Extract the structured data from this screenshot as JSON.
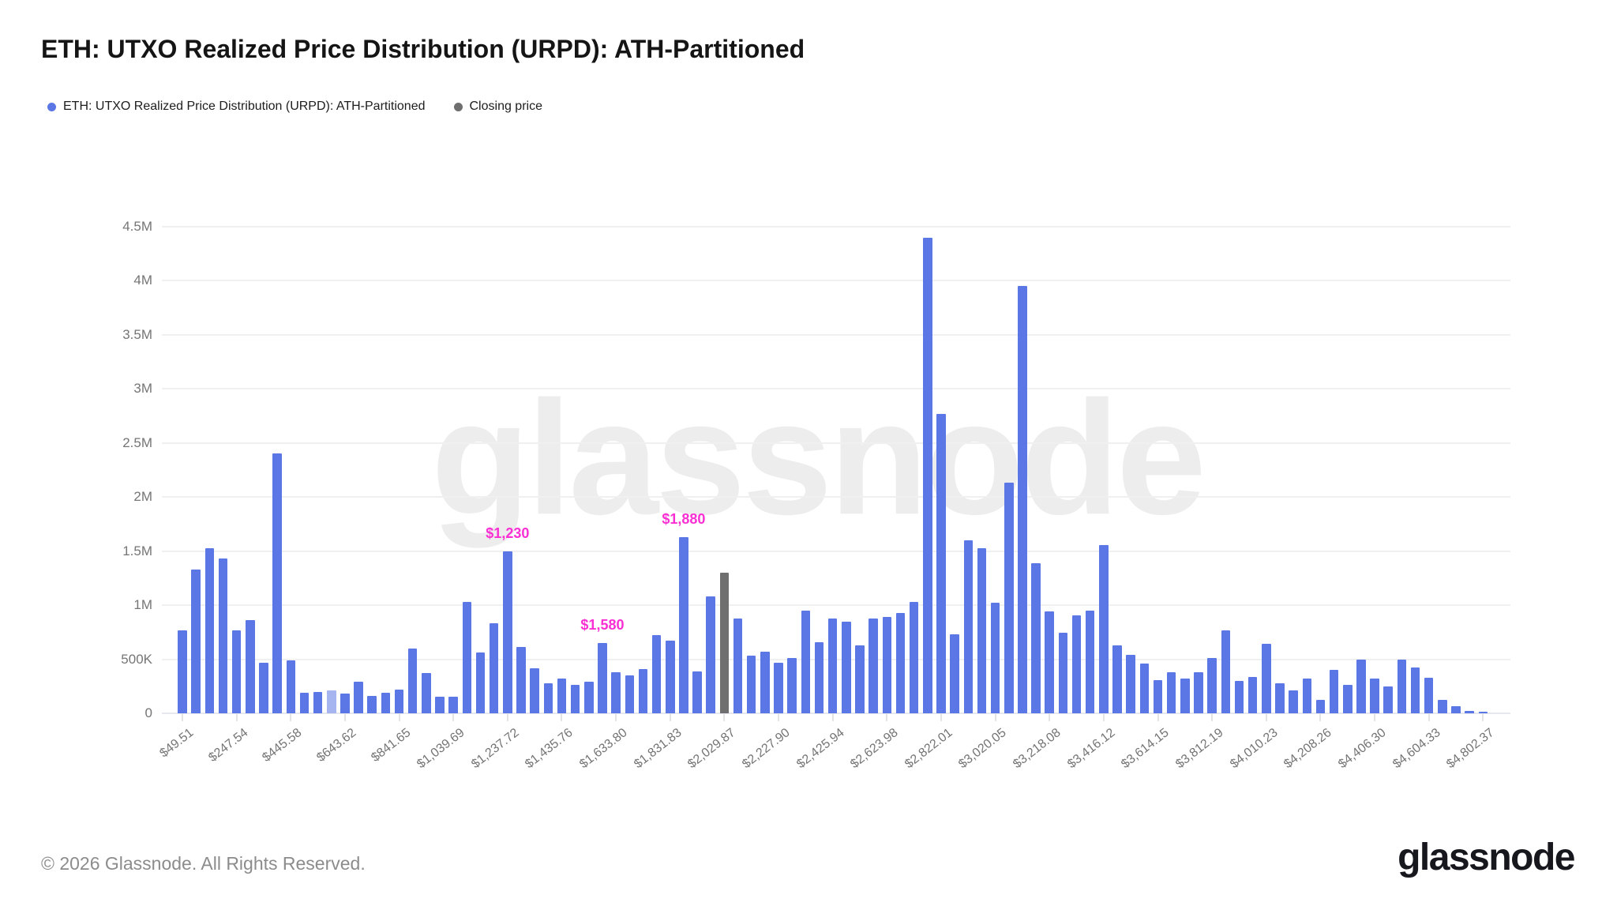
{
  "header": {
    "title": "ETH: UTXO Realized Price Distribution (URPD): ATH-Partitioned",
    "legend": [
      {
        "label": "ETH: UTXO Realized Price Distribution (URPD): ATH-Partitioned",
        "color": "#5b77e5"
      },
      {
        "label": "Closing price",
        "color": "#6f6f6f"
      }
    ]
  },
  "watermark": "glassnode",
  "footer": {
    "copyright": "© 2026 Glassnode. All Rights Reserved.",
    "logo_text": "glassnode"
  },
  "chart_data": {
    "type": "bar",
    "title": "ETH: UTXO Realized Price Distribution (URPD): ATH-Partitioned",
    "xlabel": "",
    "ylabel": "",
    "ylim": [
      0,
      4500000
    ],
    "y_unit": "coins (ETH supply)",
    "grid": "horizontal",
    "legend_position": "top-left",
    "y_ticks": [
      {
        "value": 0.0,
        "label": "0"
      },
      {
        "value": 0.5,
        "label": "500K"
      },
      {
        "value": 1.0,
        "label": "1M"
      },
      {
        "value": 1.5,
        "label": "1.5M"
      },
      {
        "value": 2.0,
        "label": "2M"
      },
      {
        "value": 2.5,
        "label": "2.5M"
      },
      {
        "value": 3.0,
        "label": "3M"
      },
      {
        "value": 3.5,
        "label": "3.5M"
      },
      {
        "value": 4.0,
        "label": "4M"
      },
      {
        "value": 4.5,
        "label": "4.5M"
      }
    ],
    "x_tick_labels": [
      "$49.51",
      "$247.54",
      "$445.58",
      "$643.62",
      "$841.65",
      "$1,039.69",
      "$1,237.72",
      "$1,435.76",
      "$1,633.80",
      "$1,831.83",
      "$2,029.87",
      "$2,227.90",
      "$2,425.94",
      "$2,623.98",
      "$2,822.01",
      "$3,020.05",
      "$3,218.08",
      "$3,416.12",
      "$3,614.15",
      "$3,812.19",
      "$4,010.23",
      "$4,208.26",
      "$4,406.30",
      "$4,604.33",
      "$4,802.37"
    ],
    "x_tick_every_n_bars": 4,
    "series": [
      {
        "name": "ETH: UTXO Realized Price Distribution (URPD): ATH-Partitioned",
        "unit": "millions",
        "values": [
          0.77,
          1.33,
          1.53,
          1.43,
          0.77,
          0.86,
          0.47,
          2.4,
          0.49,
          0.19,
          0.2,
          0.21,
          0.18,
          0.29,
          0.16,
          0.19,
          0.22,
          0.6,
          0.375,
          0.15,
          0.15,
          1.03,
          0.56,
          0.83,
          1.5,
          0.61,
          0.42,
          0.28,
          0.32,
          0.26,
          0.29,
          0.65,
          0.38,
          0.35,
          0.41,
          0.72,
          0.67,
          1.63,
          0.39,
          1.08,
          1.3,
          0.88,
          0.53,
          0.57,
          0.47,
          0.51,
          0.95,
          0.66,
          0.88,
          0.85,
          0.63,
          0.88,
          0.89,
          0.93,
          1.03,
          4.4,
          2.77,
          0.73,
          1.6,
          1.53,
          1.02,
          2.13,
          3.95,
          1.39,
          0.94,
          0.745,
          0.905,
          0.95,
          1.555,
          0.63,
          0.54,
          0.46,
          0.31,
          0.38,
          0.32,
          0.38,
          0.515,
          0.77,
          0.3,
          0.335,
          0.645,
          0.275,
          0.215,
          0.32,
          0.125,
          0.4,
          0.26,
          0.5,
          0.32,
          0.25,
          0.495,
          0.425,
          0.33,
          0.125,
          0.065,
          0.02,
          0.012
        ]
      }
    ],
    "closing_price_bar_index": 40,
    "light_bar_index": 11,
    "annotations": [
      {
        "bar_index": 24,
        "text": "$1,230"
      },
      {
        "bar_index": 31,
        "text": "$1,580"
      },
      {
        "bar_index": 37,
        "text": "$1,880"
      }
    ],
    "colors": {
      "bar": "#5b77e5",
      "bar_light": "#a6b5f0",
      "closing_price": "#6f6f6f",
      "annotation": "#f92fd3",
      "gridline": "#f0f0f0",
      "axis_text": "#757575"
    }
  }
}
